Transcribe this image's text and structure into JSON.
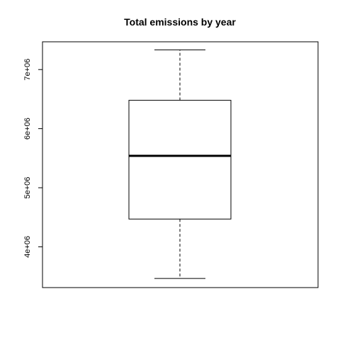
{
  "chart_data": {
    "type": "boxplot",
    "title": "Total emissions by year",
    "xlabel": "",
    "ylabel": "",
    "ylim": [
      3310000,
      7470000
    ],
    "yticks": [
      4000000,
      5000000,
      6000000,
      7000000
    ],
    "ytick_labels": [
      "4e+06",
      "5e+06",
      "6e+06",
      "7e+06"
    ],
    "grid": false,
    "box": {
      "whisker_low": 3464410,
      "q1": 4470000,
      "median": 5540000,
      "q3": 6480000,
      "whisker_high": 7332967
    },
    "colors": {
      "stroke": "#000000",
      "background": "#ffffff"
    }
  }
}
